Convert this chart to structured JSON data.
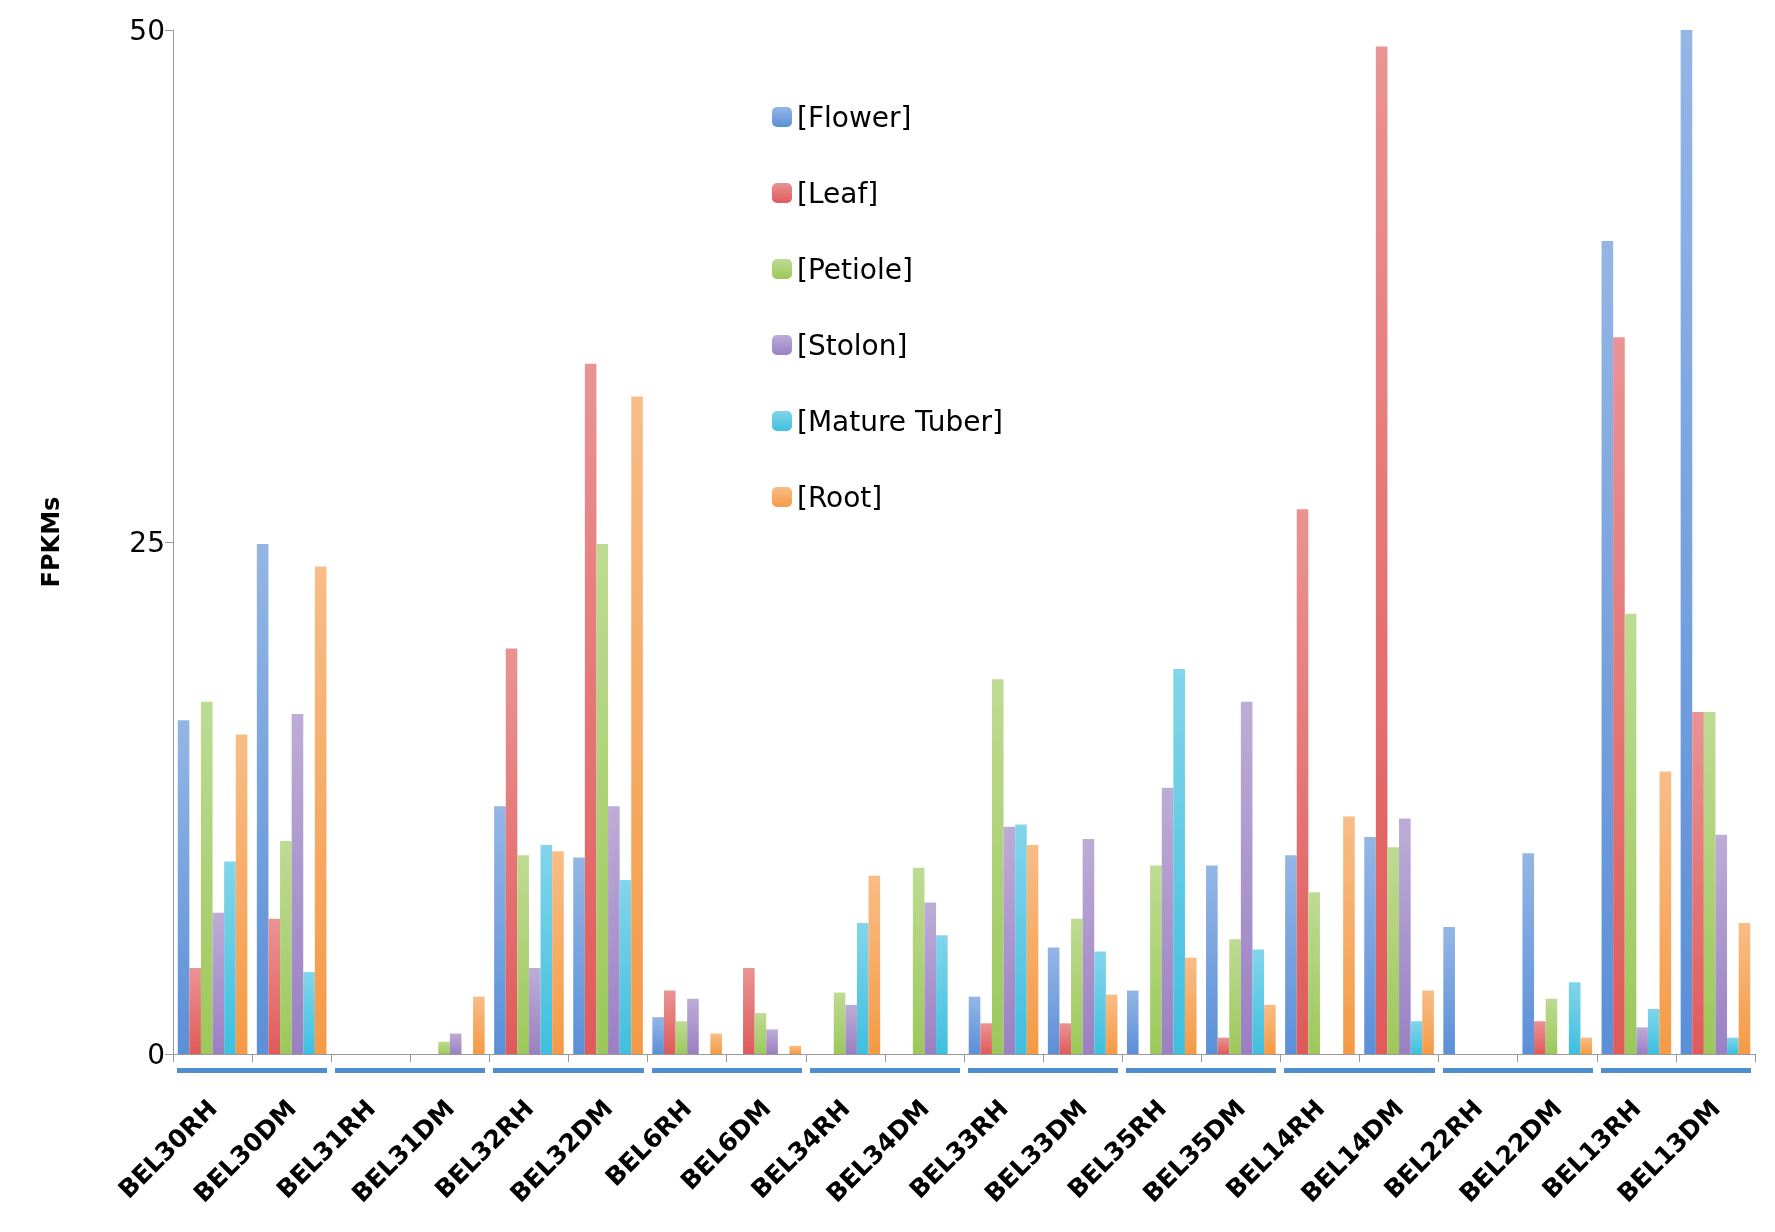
{
  "chart_data": {
    "type": "bar",
    "ylabel": "FPKMs",
    "categories": [
      "BEL30RH",
      "BEL30DM",
      "BEL31RH",
      "BEL31DM",
      "BEL32RH",
      "BEL32DM",
      "BEL6RH",
      "BEL6DM",
      "BEL34RH",
      "BEL34DM",
      "BEL33RH",
      "BEL33DM",
      "BEL35RH",
      "BEL35DM",
      "BEL14RH",
      "BEL14DM",
      "BEL22RH",
      "BEL22DM",
      "BEL13RH",
      "BEL13DM"
    ],
    "series": [
      {
        "name": "[Flower]",
        "color": "#5b8fd8",
        "values": [
          16.3,
          24.9,
          0,
          0,
          12.1,
          9.6,
          1.8,
          0,
          0,
          0,
          2.8,
          5.2,
          3.1,
          9.2,
          9.7,
          10.6,
          6.2,
          9.8,
          39.7,
          50.0
        ]
      },
      {
        "name": "[Leaf]",
        "color": "#e05a5a",
        "values": [
          4.2,
          6.6,
          0,
          0,
          19.8,
          33.7,
          3.1,
          4.2,
          0,
          0,
          1.5,
          1.5,
          0,
          0.8,
          26.6,
          49.2,
          0,
          1.6,
          35.0,
          16.7
        ]
      },
      {
        "name": "[Petiole]",
        "color": "#9cc85a",
        "values": [
          17.2,
          10.4,
          0,
          0.6,
          9.7,
          24.9,
          1.6,
          2.0,
          3.0,
          9.1,
          18.3,
          6.6,
          9.2,
          5.6,
          7.9,
          10.1,
          0,
          2.7,
          21.5,
          16.7
        ]
      },
      {
        "name": "[Stolon]",
        "color": "#9a80c2",
        "values": [
          6.9,
          16.6,
          0,
          1.0,
          4.2,
          12.1,
          2.7,
          1.2,
          2.4,
          7.4,
          11.1,
          10.5,
          13.0,
          17.2,
          0,
          11.5,
          0,
          0,
          1.3,
          10.7
        ]
      },
      {
        "name": "[Mature Tuber]",
        "color": "#3fbfdf",
        "values": [
          9.4,
          4.0,
          0,
          0,
          10.2,
          8.5,
          0,
          0,
          6.4,
          5.8,
          11.2,
          5.0,
          18.8,
          5.1,
          0,
          1.6,
          0,
          3.5,
          2.2,
          0.8
        ]
      },
      {
        "name": "[Root]",
        "color": "#f59a45",
        "values": [
          15.6,
          23.8,
          0,
          2.8,
          9.9,
          32.1,
          1.0,
          0.4,
          8.7,
          0,
          10.2,
          2.9,
          4.7,
          2.4,
          11.6,
          3.1,
          0,
          0.8,
          13.8,
          6.4
        ]
      }
    ],
    "ylim": [
      0,
      50
    ],
    "yticks": [
      0,
      25,
      50
    ],
    "grid": false,
    "legend": "top"
  }
}
